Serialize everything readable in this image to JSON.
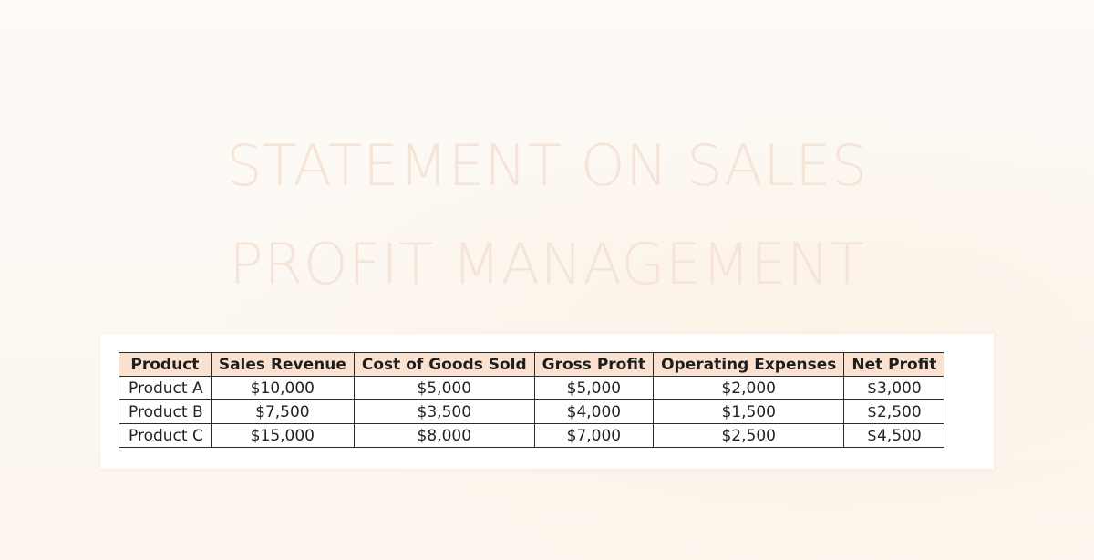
{
  "title": {
    "line1": "STATEMENT ON SALES",
    "line2": "PROFIT MANAGEMENT"
  },
  "table": {
    "headers": [
      "Product",
      "Sales Revenue",
      "Cost of Goods Sold",
      "Gross Profit",
      "Operating Expenses",
      "Net Profit"
    ],
    "rows": [
      [
        "Product A",
        "$10,000",
        "$5,000",
        "$5,000",
        "$2,000",
        "$3,000"
      ],
      [
        "Product B",
        "$7,500",
        "$3,500",
        "$4,000",
        "$1,500",
        "$2,500"
      ],
      [
        "Product C",
        "$15,000",
        "$8,000",
        "$7,000",
        "$2,500",
        "$4,500"
      ]
    ]
  },
  "colors": {
    "header_fill": "#fbe1cf",
    "title_text": "#f6e4d6",
    "page_background": "#fdf9f4"
  }
}
